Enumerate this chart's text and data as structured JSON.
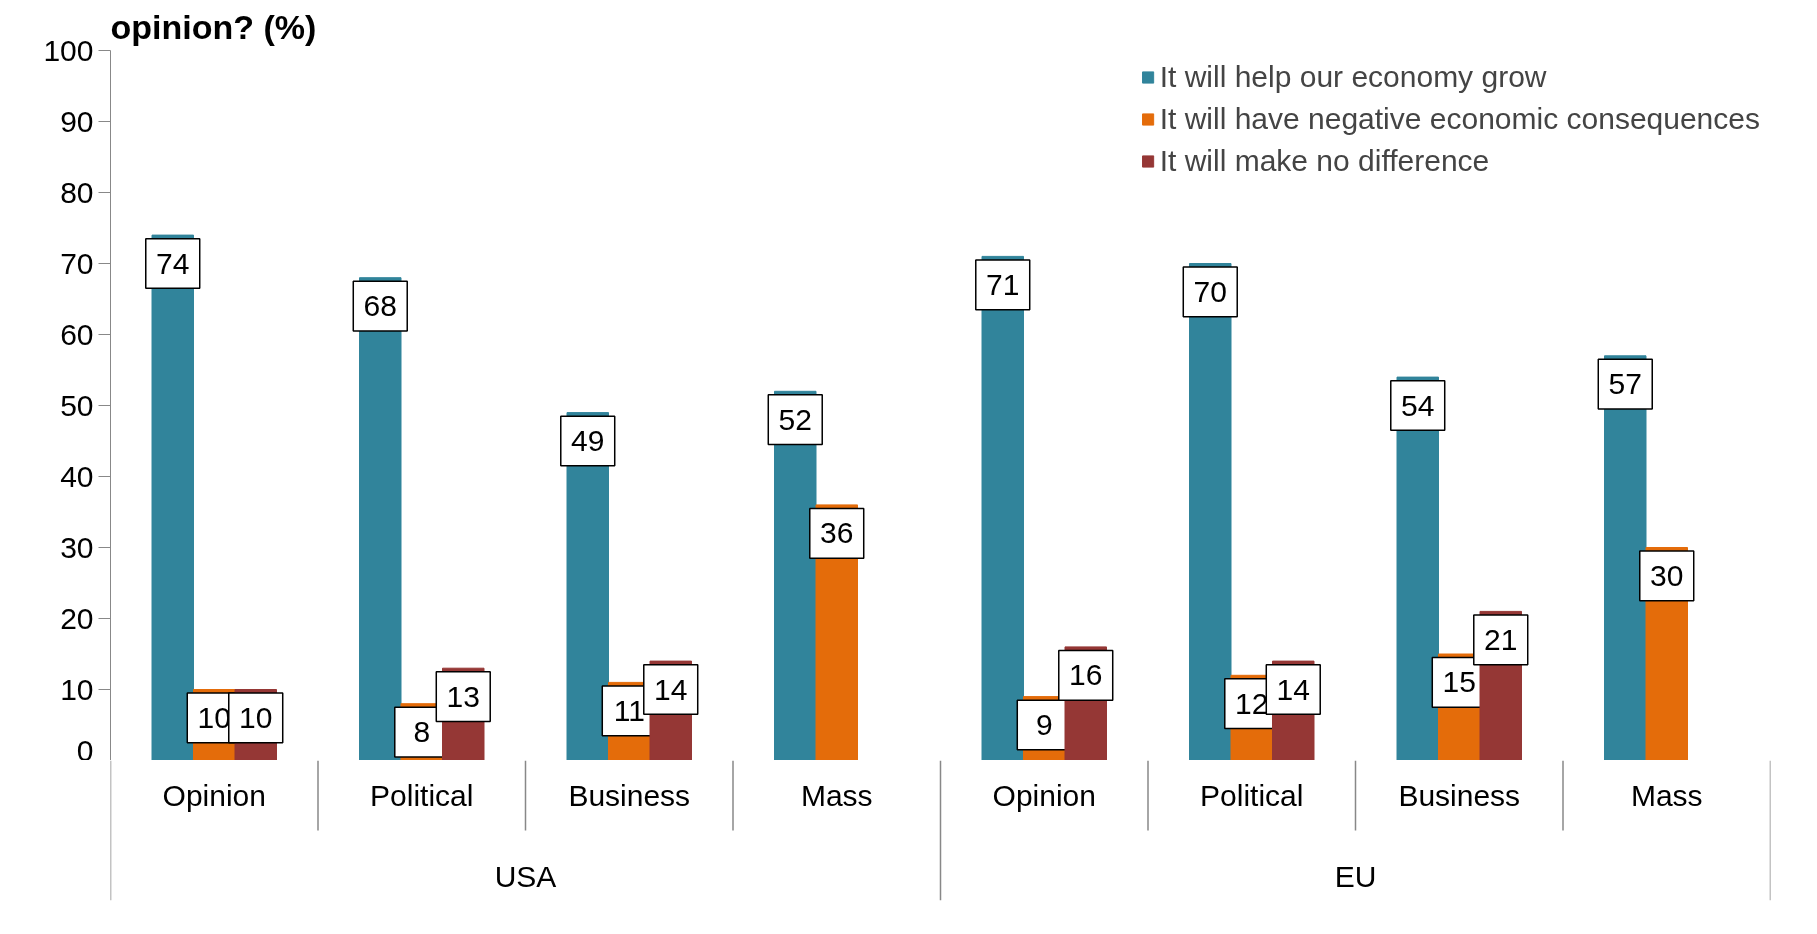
{
  "chart_data": {
    "type": "bar",
    "title": "opinion? (%)",
    "categories": [
      "Opinion",
      "Political",
      "Business",
      "Mass",
      "Opinion",
      "Political",
      "Business",
      "Mass"
    ],
    "series": [
      {
        "name": "It will help our economy grow",
        "color": "#31849b",
        "values": [
          74,
          68,
          49,
          52,
          71,
          70,
          54,
          57
        ]
      },
      {
        "name": "It will have negative economic consequences",
        "color": "#e46c0a",
        "values": [
          10,
          8,
          11,
          36,
          9,
          12,
          15,
          30
        ]
      },
      {
        "name": "It will make no difference",
        "color": "#953735",
        "values": [
          10,
          13,
          14,
          null,
          16,
          14,
          21,
          null
        ]
      }
    ],
    "annotations": [
      "USA",
      "EU"
    ],
    "ylim": [
      0,
      100
    ],
    "yticks": [
      0,
      10,
      20,
      30,
      40,
      50,
      60,
      70,
      80,
      90,
      100
    ],
    "grid": false,
    "legend": "top right",
    "data_labels": true
  }
}
